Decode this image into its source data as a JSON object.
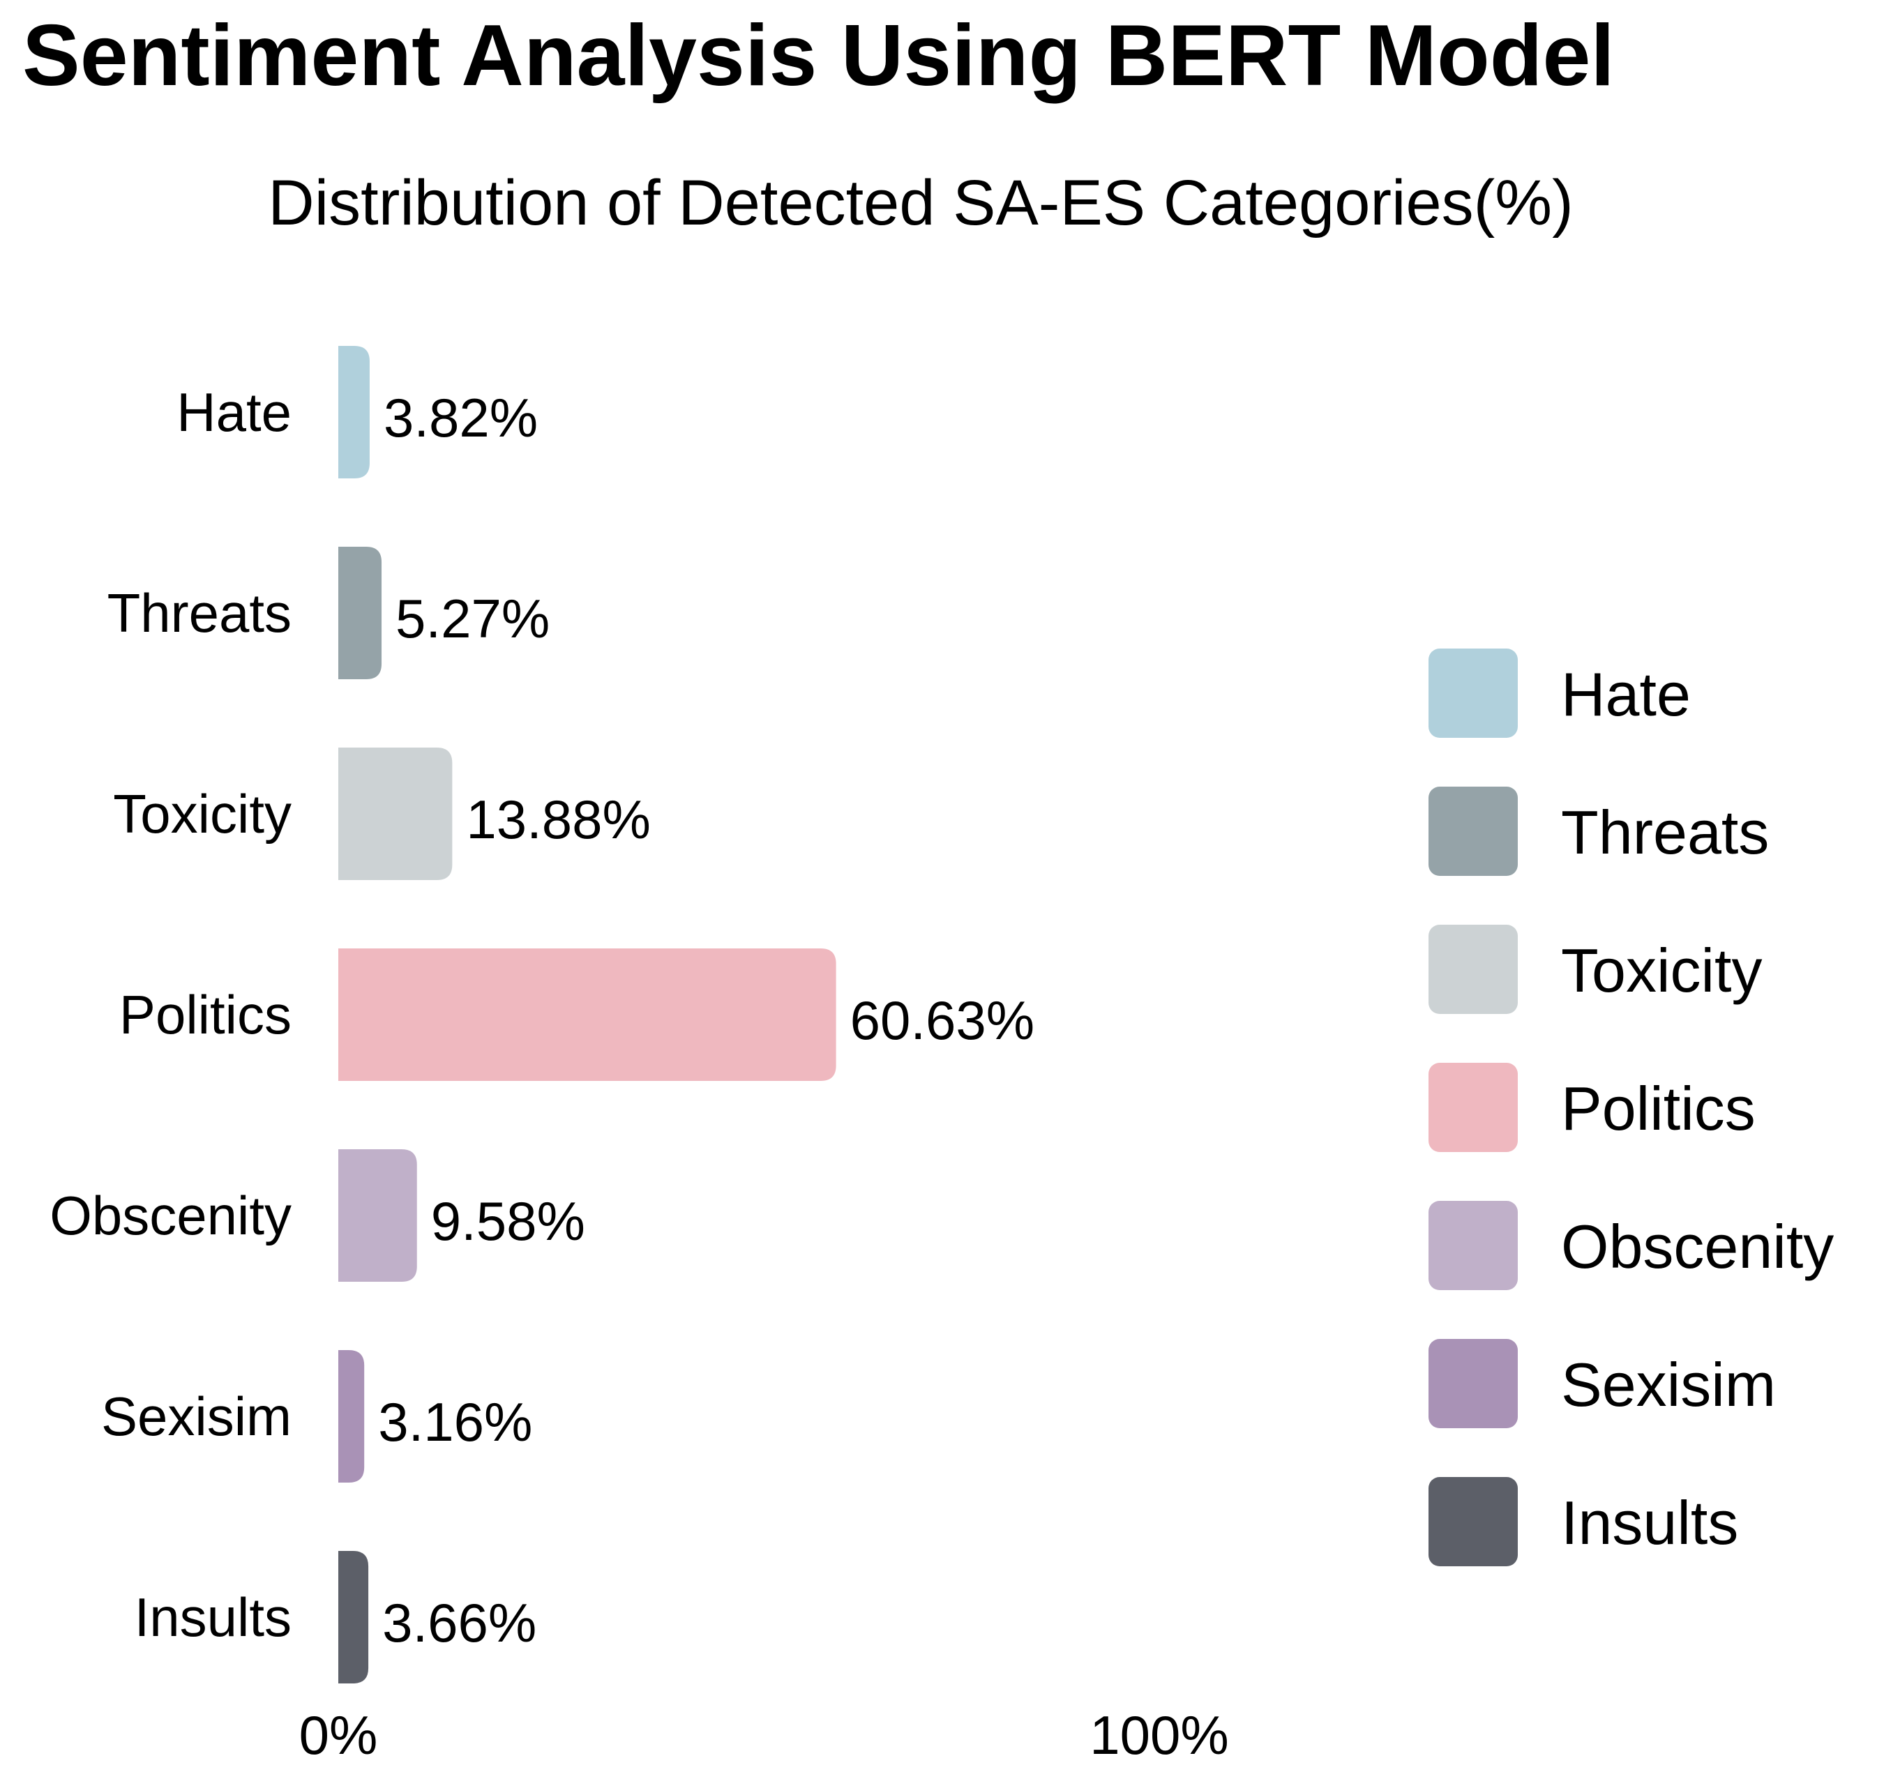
{
  "chart_data": {
    "type": "bar",
    "orientation": "horizontal",
    "title": "Sentiment Analysis Using BERT Model",
    "subtitle": "Distribution of Detected SA-ES Categories(%)",
    "categories": [
      "Hate",
      "Threats",
      "Toxicity",
      "Politics",
      "Obscenity",
      "Sexisim",
      "Insults"
    ],
    "values": [
      3.82,
      5.27,
      13.88,
      60.63,
      9.58,
      3.16,
      3.66
    ],
    "value_labels": [
      "3.82%",
      "5.27%",
      "13.88%",
      "60.63%",
      "9.58%",
      "3.16%",
      "3.66%"
    ],
    "colors": [
      "#b0d0dc",
      "#95a3a8",
      "#ccd2d4",
      "#efb8bf",
      "#c0b0c9",
      "#a992b6",
      "#5c5f68"
    ],
    "xlim": [
      0,
      100
    ],
    "x_ticks": [
      0,
      100
    ],
    "x_tick_labels": [
      "0%",
      "100%"
    ],
    "xlabel": "",
    "ylabel": "",
    "grid": false,
    "legend": {
      "position": "right",
      "entries": [
        "Hate",
        "Threats",
        "Toxicity",
        "Politics",
        "Obscenity",
        "Sexisim",
        "Insults"
      ]
    }
  }
}
